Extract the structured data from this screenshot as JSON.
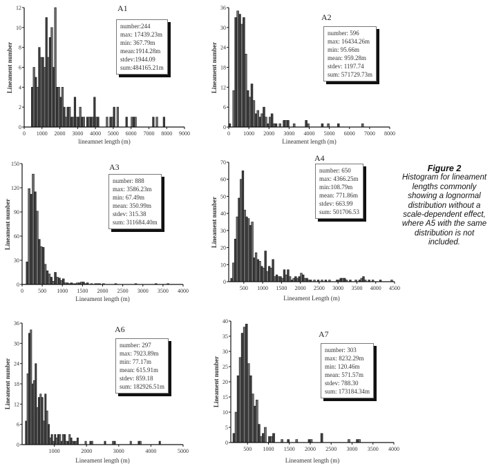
{
  "caption": {
    "title": "Figure 2",
    "text": "Histogram for lineament lengths commonly showing a lognormal distribution without a scale-dependent effect, where A5 with the same distribution is not included."
  },
  "chart_data": [
    {
      "id": "A1",
      "type": "bar",
      "title": "A1",
      "xlabel": "lineamnet length (m)",
      "ylabel": "Lineament number",
      "xlim": [
        0,
        9000
      ],
      "ylim": [
        0,
        12
      ],
      "xticks": [
        0,
        1000,
        2000,
        3000,
        4000,
        5000,
        6000,
        7000,
        8000,
        9000
      ],
      "yticks": [
        0,
        2,
        4,
        6,
        8,
        10,
        12
      ],
      "bin_width": 100,
      "x": [
        400,
        500,
        600,
        700,
        800,
        900,
        1000,
        1100,
        1200,
        1300,
        1400,
        1500,
        1600,
        1700,
        1800,
        1900,
        2000,
        2100,
        2200,
        2300,
        2400,
        2500,
        2600,
        2700,
        2800,
        2900,
        3000,
        3100,
        3200,
        3300,
        3500,
        3600,
        3700,
        3800,
        3900,
        4000,
        4100,
        4600,
        4800,
        4900,
        5000,
        5200,
        5700,
        6000,
        6100,
        6200,
        7200,
        7400,
        7800
      ],
      "values": [
        4,
        6,
        5,
        4,
        8,
        7,
        7,
        6,
        11,
        7,
        9,
        10,
        6,
        12,
        4,
        4,
        3,
        4,
        2,
        1,
        2,
        2,
        1,
        1,
        3,
        1,
        1,
        2,
        1,
        1,
        1,
        1,
        1,
        1,
        3,
        1,
        1,
        1,
        1,
        1,
        2,
        2,
        1,
        1,
        1,
        1,
        1,
        1,
        1
      ],
      "stats": [
        "number:244",
        "max: 17439.23m",
        "min: 367.79m",
        "mean:1914.28m",
        "stdev:1944.09",
        "sum:484165.21m"
      ]
    },
    {
      "id": "A2",
      "type": "bar",
      "title": "A2",
      "xlabel": "Lineament length (m)",
      "ylabel": "Lineament number",
      "xlim": [
        0,
        8000
      ],
      "ylim": [
        0,
        36
      ],
      "xticks": [
        0,
        1000,
        2000,
        3000,
        4000,
        5000,
        6000,
        7000,
        8000
      ],
      "yticks": [
        0,
        6,
        12,
        18,
        24,
        30,
        36
      ],
      "bin_width": 100,
      "x": [
        0,
        200,
        300,
        400,
        500,
        600,
        700,
        800,
        900,
        1000,
        1100,
        1200,
        1300,
        1400,
        1500,
        1600,
        1700,
        1800,
        1900,
        2000,
        2100,
        2200,
        2300,
        2500,
        2700,
        2800,
        2900,
        3200,
        3800,
        3900,
        4600,
        4900,
        5400,
        6600
      ],
      "values": [
        1,
        11,
        33,
        35,
        34,
        31,
        33,
        22,
        11,
        9,
        13,
        8,
        4,
        5,
        3,
        4,
        6,
        3,
        1,
        3,
        4,
        1,
        1,
        1,
        2,
        2,
        2,
        1,
        2,
        1,
        1,
        1,
        1,
        1
      ],
      "stats": [
        "number: 596",
        "max: 16434.26m",
        "min: 95.66m",
        "mean: 959.28m",
        "stdev: 1197.74",
        "sum: 571729.73m"
      ]
    },
    {
      "id": "A3",
      "type": "bar",
      "title": "A3",
      "xlabel": "Lineament length (m)",
      "ylabel": "Lineament number",
      "xlim": [
        0,
        4000
      ],
      "ylim": [
        0,
        150
      ],
      "xticks": [
        0,
        500,
        1000,
        1500,
        2000,
        2500,
        3000,
        3500,
        4000
      ],
      "yticks": [
        0,
        30,
        60,
        90,
        120,
        150
      ],
      "bin_width": 50,
      "x": [
        100,
        150,
        200,
        250,
        300,
        350,
        400,
        450,
        500,
        550,
        600,
        650,
        700,
        750,
        800,
        850,
        900,
        950,
        1000,
        1050,
        1100,
        1150,
        1200,
        1250,
        1300,
        1350,
        1400,
        1450,
        1500,
        1550,
        1600,
        1700,
        1800,
        1850,
        1900,
        2000,
        2300,
        2800,
        3300,
        3600
      ],
      "values": [
        28,
        119,
        112,
        137,
        115,
        91,
        56,
        47,
        46,
        25,
        17,
        13,
        9,
        4,
        15,
        9,
        8,
        5,
        7,
        2,
        2,
        1,
        2,
        1,
        1,
        2,
        2,
        3,
        3,
        1,
        2,
        1,
        1,
        1,
        1,
        1,
        1,
        1,
        1,
        1
      ],
      "stats": [
        "number: 888",
        "max: 3586.23m",
        "min: 67.49m",
        "mean: 350.99m",
        "stdev: 315.38",
        "sum: 311684.40m"
      ]
    },
    {
      "id": "A4",
      "type": "bar",
      "title": "A4",
      "xlabel": "Lineament Length (m)",
      "ylabel": "Lineament number",
      "xlim": [
        100,
        4500
      ],
      "ylim": [
        0,
        70
      ],
      "xticks": [
        500,
        1000,
        1500,
        2000,
        2500,
        3000,
        3500,
        4000,
        4500
      ],
      "yticks": [
        0,
        10,
        20,
        30,
        40,
        50,
        60,
        70
      ],
      "bin_width": 50,
      "x": [
        150,
        200,
        250,
        300,
        350,
        400,
        450,
        500,
        550,
        600,
        650,
        700,
        750,
        800,
        850,
        900,
        950,
        1000,
        1050,
        1100,
        1150,
        1200,
        1250,
        1300,
        1350,
        1400,
        1450,
        1500,
        1550,
        1600,
        1650,
        1700,
        1750,
        1800,
        1850,
        1900,
        1950,
        2000,
        2050,
        2100,
        2150,
        2200,
        2250,
        2350,
        2450,
        2550,
        2650,
        2750,
        2950,
        3000,
        3050,
        3100,
        3150,
        3200,
        3300,
        3450,
        3550,
        3600,
        3650,
        3700,
        3800,
        3900,
        4100,
        4400
      ],
      "values": [
        2,
        11,
        25,
        38,
        49,
        60,
        65,
        42,
        38,
        37,
        33,
        35,
        14,
        17,
        13,
        12,
        9,
        8,
        18,
        6,
        9,
        8,
        13,
        3,
        4,
        3,
        3,
        2,
        7,
        4,
        7,
        3,
        1,
        2,
        3,
        2,
        3,
        5,
        4,
        2,
        2,
        1,
        1,
        1,
        1,
        1,
        1,
        1,
        1,
        1,
        2,
        2,
        2,
        1,
        1,
        1,
        1,
        2,
        3,
        1,
        1,
        1,
        1,
        1
      ],
      "stats": [
        "number: 650",
        "max: 4366.25m",
        "min:108.79m",
        "mean: 771.86m",
        "stdev: 663.99",
        "sum: 501706.53"
      ]
    },
    {
      "id": "A6",
      "type": "bar",
      "title": "A6",
      "xlabel": "Lineament length (m)",
      "ylabel": "Lineament number",
      "xlim": [
        0,
        5000
      ],
      "ylim": [
        0,
        36
      ],
      "xticks": [
        1000,
        2000,
        3000,
        4000,
        5000
      ],
      "yticks": [
        0,
        6,
        12,
        18,
        24,
        30,
        36
      ],
      "bin_width": 50,
      "x": [
        100,
        150,
        200,
        250,
        300,
        350,
        400,
        450,
        500,
        550,
        600,
        650,
        700,
        750,
        800,
        850,
        900,
        950,
        1000,
        1050,
        1100,
        1150,
        1200,
        1250,
        1300,
        1350,
        1400,
        1450,
        1500,
        1550,
        1600,
        1650,
        1700,
        1950,
        2100,
        2150,
        2550,
        2800,
        2850,
        3350,
        3600,
        3650,
        4250
      ],
      "values": [
        7,
        21,
        33,
        34,
        18,
        19,
        24,
        11,
        14,
        15,
        14,
        7,
        15,
        10,
        6,
        2,
        3,
        1,
        3,
        2,
        3,
        3,
        1,
        3,
        3,
        1,
        1,
        3,
        2,
        1,
        1,
        1,
        2,
        1,
        1,
        1,
        1,
        1,
        1,
        1,
        1,
        1,
        1
      ],
      "stats": [
        "number: 297",
        "max: 7923.89m",
        "min: 77.17m",
        "mean: 615.91m",
        "stdev: 859.18",
        "sum: 182926.51m"
      ]
    },
    {
      "id": "A7",
      "type": "bar",
      "title": "A7",
      "xlabel": "Lineament length (m)",
      "ylabel": "Lineament number",
      "xlim": [
        100,
        4000
      ],
      "ylim": [
        0,
        40
      ],
      "xticks": [
        500,
        1000,
        1500,
        2000,
        2500,
        3000,
        3500,
        4000
      ],
      "yticks": [
        0,
        5,
        10,
        15,
        20,
        25,
        30,
        35,
        40
      ],
      "bin_width": 50,
      "x": [
        150,
        200,
        250,
        300,
        350,
        400,
        450,
        500,
        550,
        600,
        650,
        700,
        750,
        800,
        850,
        900,
        1000,
        1050,
        1100,
        1300,
        1450,
        1650,
        1950,
        2000,
        2250,
        2900,
        3100,
        3150
      ],
      "values": [
        3,
        10,
        22,
        28,
        36,
        38,
        39,
        26,
        22,
        16,
        12,
        14,
        6,
        2,
        3,
        5,
        2,
        2,
        3,
        1,
        1,
        1,
        1,
        1,
        3,
        1,
        1,
        1
      ],
      "stats": [
        "number: 303",
        "max: 8232.29m",
        "min: 120.46m",
        "mean: 571.57m",
        "stdev: 788.30",
        "sum: 173184.34m"
      ]
    }
  ]
}
